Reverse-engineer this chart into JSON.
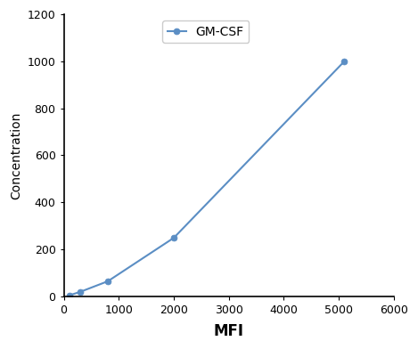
{
  "x_values": [
    100,
    300,
    800,
    2000,
    5100
  ],
  "y_values": [
    3,
    18,
    63,
    248,
    1000
  ],
  "line_color": "#5b8ec4",
  "marker_color": "#5b8ec4",
  "marker_style": "o",
  "marker_size": 5,
  "line_width": 1.5,
  "xlabel": "MFI",
  "ylabel": "Concentration",
  "xlim": [
    0,
    5800
  ],
  "ylim": [
    0,
    1200
  ],
  "xticks": [
    0,
    1000,
    2000,
    3000,
    4000,
    5000,
    6000
  ],
  "yticks": [
    0,
    200,
    400,
    600,
    800,
    1000,
    1200
  ],
  "legend_label": "GM-CSF",
  "xlabel_fontsize": 12,
  "ylabel_fontsize": 10,
  "tick_fontsize": 9,
  "legend_fontsize": 10,
  "background_color": "#ffffff"
}
